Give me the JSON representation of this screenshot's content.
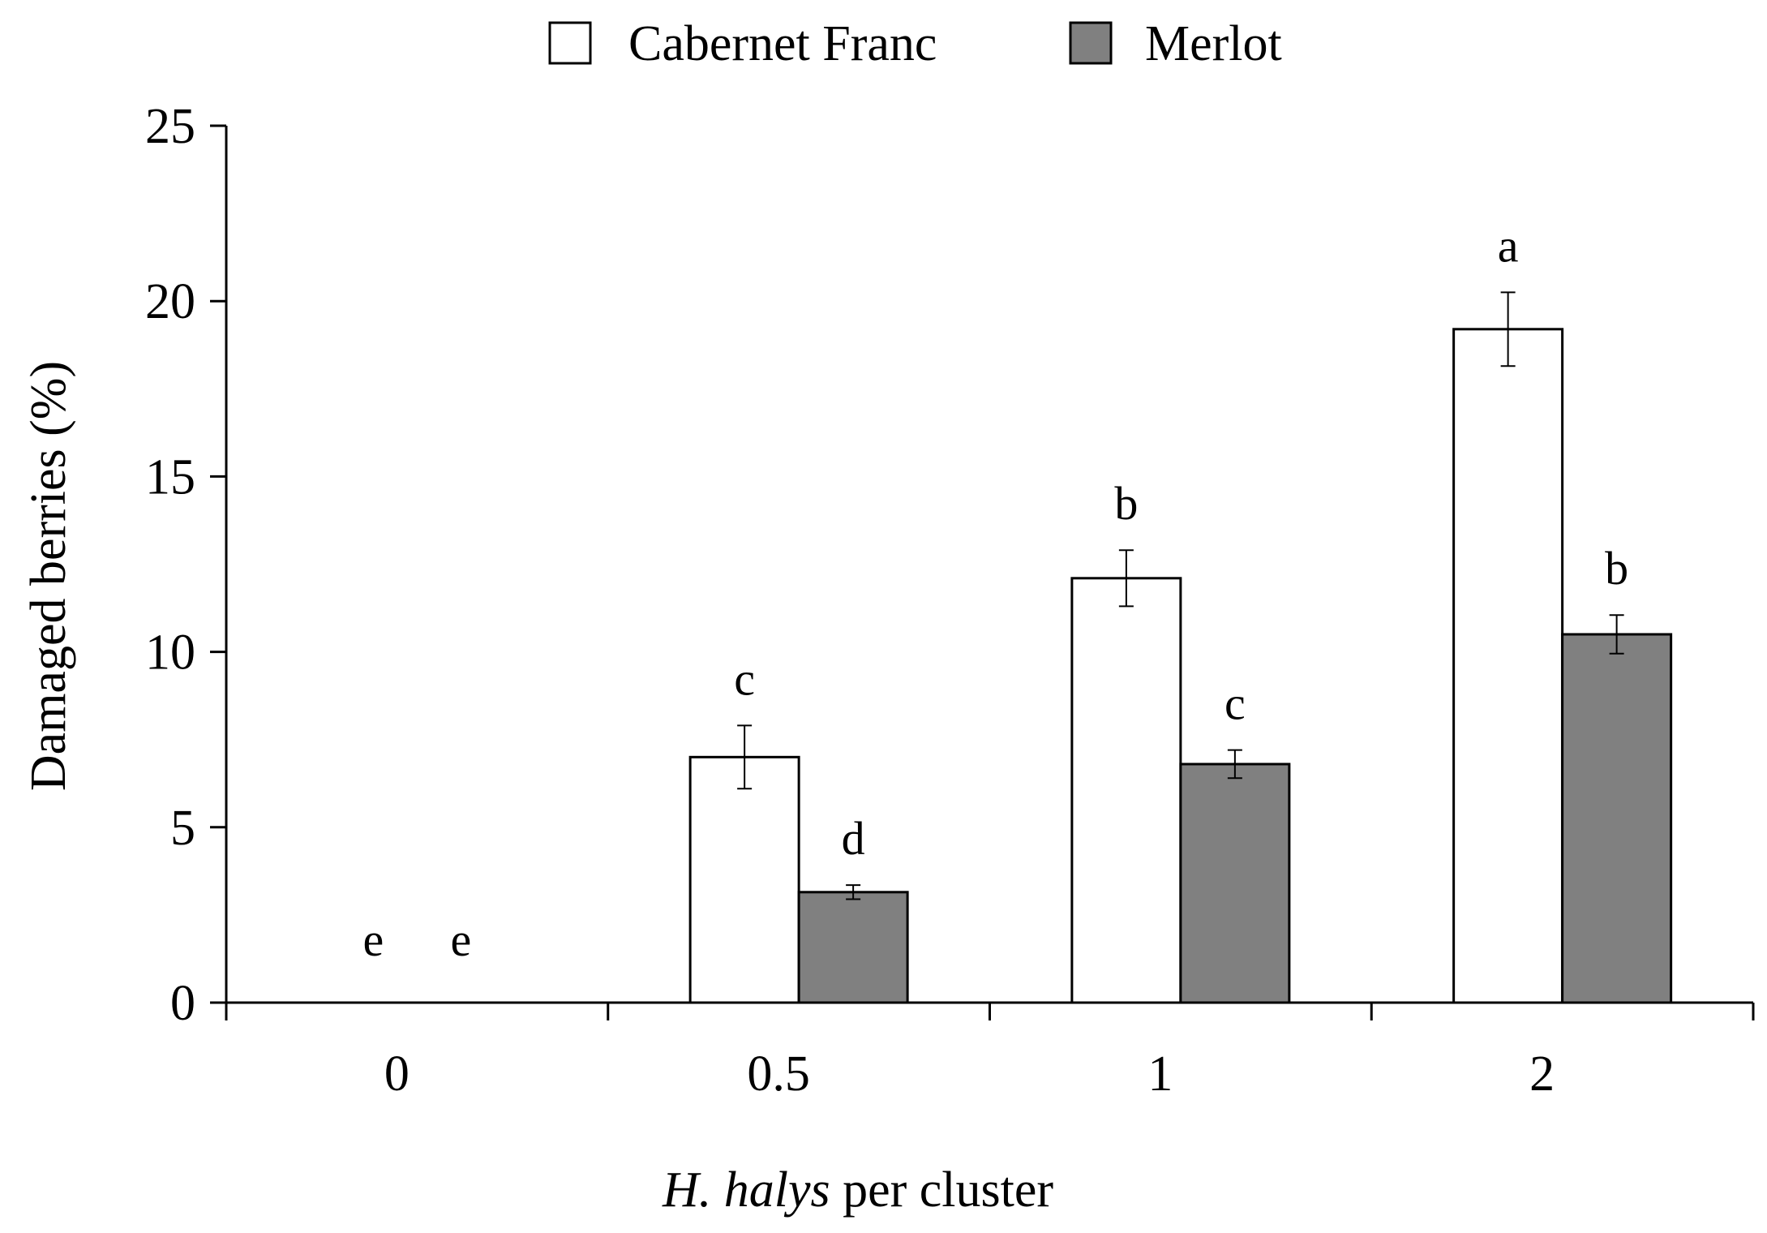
{
  "chart_data": {
    "type": "bar",
    "title": "",
    "xlabel": "H. halys per cluster",
    "xlabel_parts": {
      "italic": "H. halys",
      "rest": " per cluster"
    },
    "ylabel": "Damaged berries (%)",
    "categories": [
      "0",
      "0.5",
      "1",
      "2"
    ],
    "ylim": [
      0,
      25
    ],
    "yticks": [
      0,
      5,
      10,
      15,
      20,
      25
    ],
    "legend_position": "top-center",
    "series": [
      {
        "name": "Cabernet Franc",
        "color": "#ffffff",
        "values": [
          0,
          7.0,
          12.1,
          19.2
        ],
        "errors": [
          0,
          0.9,
          0.8,
          1.05
        ],
        "letters": [
          "e",
          "c",
          "b",
          "a"
        ]
      },
      {
        "name": "Merlot",
        "color": "#808080",
        "values": [
          0,
          3.15,
          6.8,
          10.5
        ],
        "errors": [
          0,
          0.2,
          0.4,
          0.55
        ],
        "letters": [
          "e",
          "d",
          "c",
          "b"
        ]
      }
    ],
    "grid": false
  }
}
